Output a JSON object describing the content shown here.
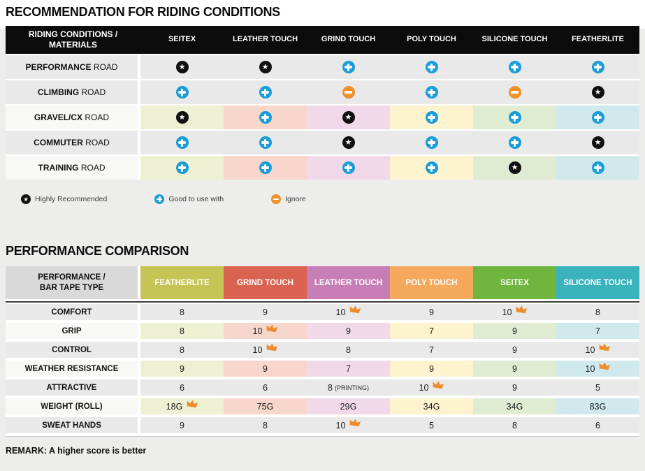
{
  "riding_table": {
    "title": "RECOMMENDATION FOR RIDING CONDITIONS",
    "header_label_line1": "RIDING CONDITIONS /",
    "header_label_line2": "MATERIALS",
    "columns": [
      "SEITEX",
      "LEATHER TOUCH",
      "GRIND TOUCH",
      "POLY TOUCH",
      "SILICONE TOUCH",
      "FEATHERLITE"
    ],
    "column_tints": [
      "#eef0d3",
      "#f7d6cb",
      "#f1d9ea",
      "#fdf3cf",
      "#dfecd2",
      "#cfe9ec"
    ],
    "rows": [
      {
        "label_strong": "PERFORMANCE",
        "label_rest": " ROAD",
        "tinted": false,
        "cells": [
          "star",
          "star",
          "plus",
          "plus",
          "plus",
          "plus"
        ]
      },
      {
        "label_strong": "CLIMBING",
        "label_rest": " ROAD",
        "tinted": false,
        "cells": [
          "plus",
          "plus",
          "minus",
          "plus",
          "minus",
          "star"
        ]
      },
      {
        "label_strong": "GRAVEL/CX",
        "label_rest": " ROAD",
        "tinted": true,
        "cells": [
          "star",
          "plus",
          "star",
          "plus",
          "plus",
          "plus"
        ]
      },
      {
        "label_strong": "COMMUTER",
        "label_rest": " ROAD",
        "tinted": false,
        "cells": [
          "plus",
          "plus",
          "star",
          "plus",
          "plus",
          "star"
        ]
      },
      {
        "label_strong": "TRAINING",
        "label_rest": " ROAD",
        "tinted": true,
        "cells": [
          "plus",
          "plus",
          "plus",
          "plus",
          "star",
          "plus"
        ]
      }
    ],
    "legend": [
      {
        "icon": "star",
        "label": "Highly Recommended"
      },
      {
        "icon": "plus",
        "label": "Good to use with"
      },
      {
        "icon": "minus",
        "label": "Ignore"
      }
    ]
  },
  "performance_table": {
    "title": "PERFORMANCE COMPARISON",
    "header_label_line1": "PERFORMANCE /",
    "header_label_line2": "BAR TAPE TYPE",
    "columns": [
      {
        "label": "FEATHERLITE",
        "color": "#c6c455",
        "tint": "#eef0d3"
      },
      {
        "label": "GRIND TOUCH",
        "color": "#d96350",
        "tint": "#f7d6cb"
      },
      {
        "label": "LEATHER TOUCH",
        "color": "#c77eb6",
        "tint": "#f1d9ea"
      },
      {
        "label": "POLY TOUCH",
        "color": "#f5a95d",
        "tint": "#fdf3cf"
      },
      {
        "label": "SEITEX",
        "color": "#70b53e",
        "tint": "#dfecd2"
      },
      {
        "label": "SILICONE TOUCH",
        "color": "#3ab3bc",
        "tint": "#cfe9ec"
      }
    ],
    "rows": [
      {
        "label": "COMFORT",
        "tinted": false,
        "cells": [
          {
            "value": "8"
          },
          {
            "value": "9"
          },
          {
            "value": "10",
            "crown": true
          },
          {
            "value": "9"
          },
          {
            "value": "10",
            "crown": true
          },
          {
            "value": "8"
          }
        ]
      },
      {
        "label": "GRIP",
        "tinted": true,
        "cells": [
          {
            "value": "8"
          },
          {
            "value": "10",
            "crown": true
          },
          {
            "value": "9"
          },
          {
            "value": "7"
          },
          {
            "value": "9"
          },
          {
            "value": "7"
          }
        ]
      },
      {
        "label": "CONTROL",
        "tinted": false,
        "cells": [
          {
            "value": "8"
          },
          {
            "value": "10",
            "crown": true
          },
          {
            "value": "8"
          },
          {
            "value": "7"
          },
          {
            "value": "9"
          },
          {
            "value": "10",
            "crown": true
          }
        ]
      },
      {
        "label": "WEATHER RESISTANCE",
        "tinted": true,
        "cells": [
          {
            "value": "9"
          },
          {
            "value": "9"
          },
          {
            "value": "7"
          },
          {
            "value": "9"
          },
          {
            "value": "9"
          },
          {
            "value": "10",
            "crown": true
          }
        ]
      },
      {
        "label": "ATTRACTIVE",
        "tinted": false,
        "cells": [
          {
            "value": "6"
          },
          {
            "value": "6"
          },
          {
            "value": "8",
            "note": "(PRINTING)"
          },
          {
            "value": "10",
            "crown": true
          },
          {
            "value": "9"
          },
          {
            "value": "5"
          }
        ]
      },
      {
        "label": "WEIGHT (ROLL)",
        "tinted": true,
        "cells": [
          {
            "value": "18G",
            "crown": true
          },
          {
            "value": "75G"
          },
          {
            "value": "29G"
          },
          {
            "value": "34G"
          },
          {
            "value": "34G"
          },
          {
            "value": "83G"
          }
        ]
      },
      {
        "label": "SWEAT HANDS",
        "tinted": false,
        "cells": [
          {
            "value": "9"
          },
          {
            "value": "8"
          },
          {
            "value": "10",
            "crown": true
          },
          {
            "value": "5"
          },
          {
            "value": "8"
          },
          {
            "value": "6"
          }
        ]
      }
    ],
    "remark": "REMARK: A higher score is better"
  },
  "colors": {
    "icon_star_bg": "#101010",
    "icon_plus_bg": "#1a9dd9",
    "icon_minus_bg": "#f0912c",
    "crown": "#ee8c2a",
    "table1_header_bg": "#0c0c0c",
    "grey_row_bg": "#e8e9e8"
  }
}
